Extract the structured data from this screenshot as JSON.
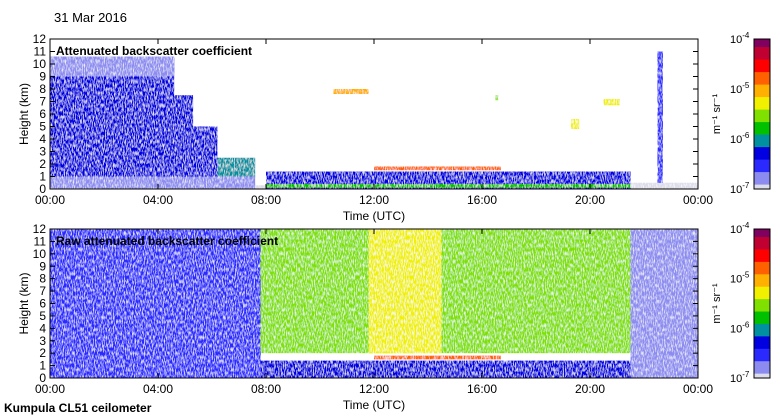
{
  "date_label": "31 Mar 2016",
  "footer": "Kumpula CL51 ceilometer",
  "colorbar": {
    "unit": "m⁻¹ sr⁻¹",
    "ticks": [
      {
        "exp": -4,
        "label": "10-4"
      },
      {
        "exp": -5,
        "label": "10-5"
      },
      {
        "exp": -6,
        "label": "10-6"
      },
      {
        "exp": -7,
        "label": "10-7"
      }
    ],
    "colors": [
      "#dcdcea",
      "#8c8cf0",
      "#2a2aff",
      "#0000e0",
      "#0090a0",
      "#00c000",
      "#80e000",
      "#f0f000",
      "#ffb000",
      "#ff6000",
      "#ff0000",
      "#c00030",
      "#800060"
    ]
  },
  "chart_data": [
    {
      "type": "heatmap",
      "title": "Attenuated backscatter coefficient",
      "xlabel": "Time (UTC)",
      "ylabel": "Height (km)",
      "xlim": [
        0,
        24
      ],
      "ylim": [
        0,
        12
      ],
      "xticks": [
        "00:00",
        "04:00",
        "08:00",
        "12:00",
        "16:00",
        "20:00",
        "00:00"
      ],
      "yticks": [
        "0",
        "1",
        "2",
        "3",
        "4",
        "5",
        "6",
        "7",
        "8",
        "9",
        "10",
        "11",
        "12"
      ],
      "value_scale": "log10",
      "vlim": [
        -7,
        -4
      ],
      "regions": [
        {
          "t": [
            0,
            4.6
          ],
          "h": [
            1,
            10.5
          ],
          "v": -6.3
        },
        {
          "t": [
            0,
            4.6
          ],
          "h": [
            9,
            10.6
          ],
          "v": -6.8
        },
        {
          "t": [
            4.6,
            5.3
          ],
          "h": [
            1,
            7.5
          ],
          "v": -6.3
        },
        {
          "t": [
            5.3,
            6.2
          ],
          "h": [
            1,
            5
          ],
          "v": -6.2
        },
        {
          "t": [
            6.2,
            7.6
          ],
          "h": [
            1,
            2.5
          ],
          "v": -6.0
        },
        {
          "t": [
            0,
            7.6
          ],
          "h": [
            0,
            1
          ],
          "v": -6.8
        },
        {
          "t": [
            7.6,
            8.0
          ],
          "h": [
            0,
            0.3
          ],
          "v": -6.9
        },
        {
          "t": [
            8.0,
            21.5
          ],
          "h": [
            0,
            1.4
          ],
          "v": -6.3
        },
        {
          "t": [
            8.0,
            21.5
          ],
          "h": [
            0.1,
            0.4
          ],
          "v": -5.8
        },
        {
          "t": [
            12.0,
            16.7
          ],
          "h": [
            1.5,
            1.8
          ],
          "v": -4.8
        },
        {
          "t": [
            10.5,
            11.8
          ],
          "h": [
            7.6,
            8.0
          ],
          "v": -5.0
        },
        {
          "t": [
            16.5,
            16.6
          ],
          "h": [
            7.1,
            7.5
          ],
          "v": -5.5
        },
        {
          "t": [
            19.3,
            19.6
          ],
          "h": [
            4.8,
            5.6
          ],
          "v": -5.3
        },
        {
          "t": [
            20.5,
            21.1
          ],
          "h": [
            6.7,
            7.2
          ],
          "v": -5.2
        },
        {
          "t": [
            22.5,
            22.7
          ],
          "h": [
            0.3,
            11
          ],
          "v": -6.4
        },
        {
          "t": [
            21.5,
            24
          ],
          "h": [
            0,
            0.5
          ],
          "v": -6.9
        }
      ]
    },
    {
      "type": "heatmap",
      "title": "Raw attenuated backscatter coefficient",
      "xlabel": "Time (UTC)",
      "ylabel": "Height (km)",
      "xlim": [
        0,
        24
      ],
      "ylim": [
        0,
        12
      ],
      "xticks": [
        "00:00",
        "04:00",
        "08:00",
        "12:00",
        "16:00",
        "20:00",
        "00:00"
      ],
      "yticks": [
        "0",
        "1",
        "2",
        "3",
        "4",
        "5",
        "6",
        "7",
        "8",
        "9",
        "10",
        "11",
        "12"
      ],
      "value_scale": "log10",
      "vlim": [
        -7,
        -4
      ],
      "regions": [
        {
          "t": [
            0,
            7.8
          ],
          "h": [
            0,
            12
          ],
          "v": -6.4
        },
        {
          "t": [
            3.5,
            7.8
          ],
          "h": [
            0,
            12
          ],
          "v": -6.6
        },
        {
          "t": [
            7.8,
            21.5
          ],
          "h": [
            2,
            12
          ],
          "v": -5.6
        },
        {
          "t": [
            11.8,
            14.5
          ],
          "h": [
            2,
            12
          ],
          "v": -5.2
        },
        {
          "t": [
            7.8,
            21.5
          ],
          "h": [
            0,
            1.4
          ],
          "v": -6.3
        },
        {
          "t": [
            12.0,
            16.7
          ],
          "h": [
            1.5,
            1.8
          ],
          "v": -4.8
        },
        {
          "t": [
            21.5,
            24
          ],
          "h": [
            0,
            12
          ],
          "v": -6.8
        }
      ]
    }
  ]
}
